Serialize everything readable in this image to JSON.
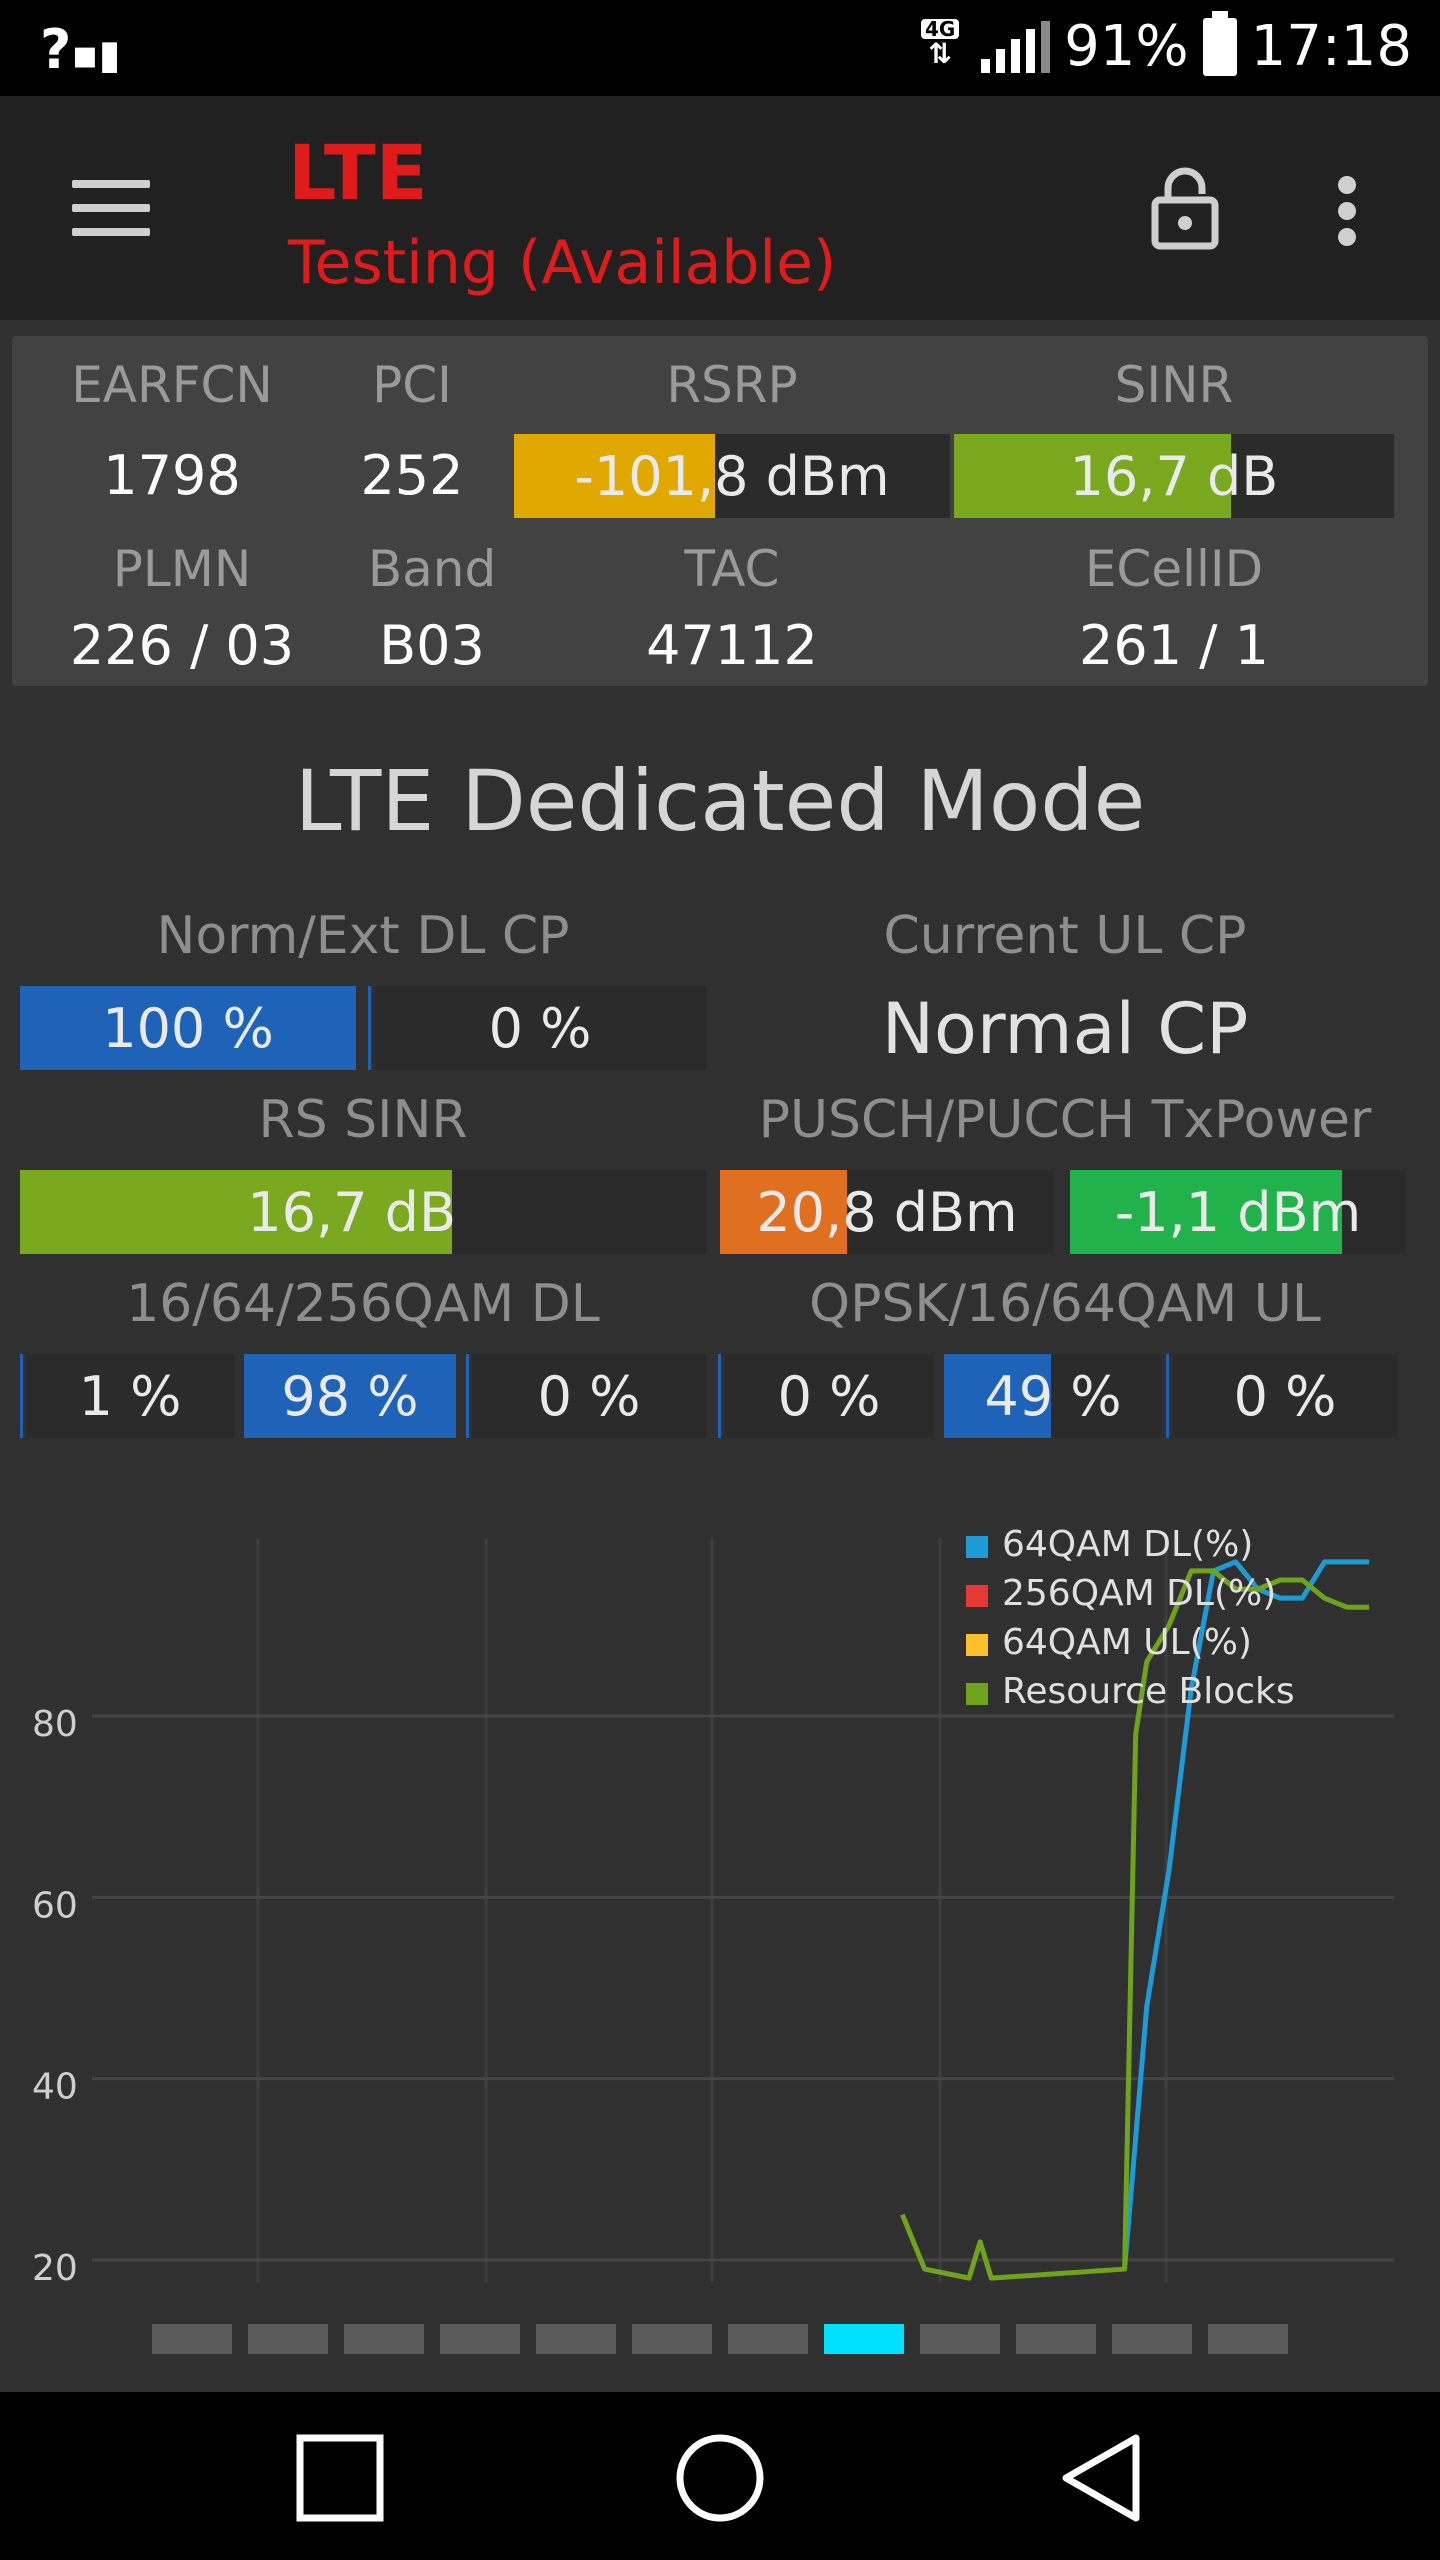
{
  "status_bar": {
    "signal_text": "?",
    "network_badge": "4G",
    "battery": "91%",
    "time": "17:18"
  },
  "toolbar": {
    "title": "LTE",
    "subtitle": "Testing (Available)"
  },
  "info": {
    "earfcn_label": "EARFCN",
    "earfcn": "1798",
    "pci_label": "PCI",
    "pci": "252",
    "rsrp_label": "RSRP",
    "rsrp": "-101,8 dBm",
    "rsrp_fill": 0.46,
    "rsrp_color": "#e0a800",
    "sinr_label": "SINR",
    "sinr": "16,7 dB",
    "sinr_fill": 0.63,
    "sinr_color": "#7aa81f",
    "plmn_label": "PLMN",
    "plmn": "226 / 03",
    "band_label": "Band",
    "band": "B03",
    "tac_label": "TAC",
    "tac": "47112",
    "ecellid_label": "ECellID",
    "ecellid": "261 / 1"
  },
  "dedicated": {
    "title": "LTE Dedicated Mode",
    "dl_cp_label": "Norm/Ext DL CP",
    "dl_cp_norm": "100 %",
    "dl_cp_ext": "0 %",
    "ul_cp_label": "Current UL CP",
    "ul_cp_value": "Normal CP",
    "rs_sinr_label": "RS SINR",
    "rs_sinr": "16,7 dB",
    "rs_sinr_fill": 0.63,
    "txpower_label": "PUSCH/PUCCH TxPower",
    "pusch": "20,8 dBm",
    "pusch_fill": 0.38,
    "pucch": "-1,1 dBm",
    "pucch_fill": 0.81,
    "qam_dl_label": "16/64/256QAM DL",
    "qam_dl_16": "1 %",
    "qam_dl_64": "98 %",
    "qam_dl_256": "0 %",
    "qam_ul_label": "QPSK/16/64QAM UL",
    "qam_ul_qpsk": "0 %",
    "qam_ul_16": "49 %",
    "qam_ul_16_fill": 0.49,
    "qam_ul_64": "0 %"
  },
  "chart_data": {
    "type": "line",
    "ylim": [
      20,
      100
    ],
    "y_ticks": [
      "80",
      "60",
      "40",
      "20"
    ],
    "legend_position": "top-right",
    "series": [
      {
        "name": "64QAM DL(%)",
        "color": "#1e9bd7",
        "x": [
          39,
          40,
          41,
          42,
          43,
          44,
          45,
          46,
          47,
          48,
          49,
          50
        ],
        "values": [
          19,
          48,
          63,
          83,
          96,
          97,
          94,
          93,
          93,
          97,
          97,
          97
        ]
      },
      {
        "name": "256QAM DL(%)",
        "color": "#e53935",
        "x": [],
        "values": []
      },
      {
        "name": "64QAM UL(%)",
        "color": "#fbc02d",
        "x": [],
        "values": []
      },
      {
        "name": "Resource Blocks",
        "color": "#6fa31c",
        "x": [
          29,
          30,
          32,
          32.5,
          33,
          39,
          39.5,
          40,
          41,
          42,
          43,
          44,
          45,
          46,
          47,
          48,
          49,
          50
        ],
        "values": [
          25,
          19,
          18,
          22,
          18,
          19,
          78,
          86,
          90,
          96,
          96,
          94,
          94,
          95,
          95,
          93,
          92,
          92
        ]
      }
    ]
  }
}
